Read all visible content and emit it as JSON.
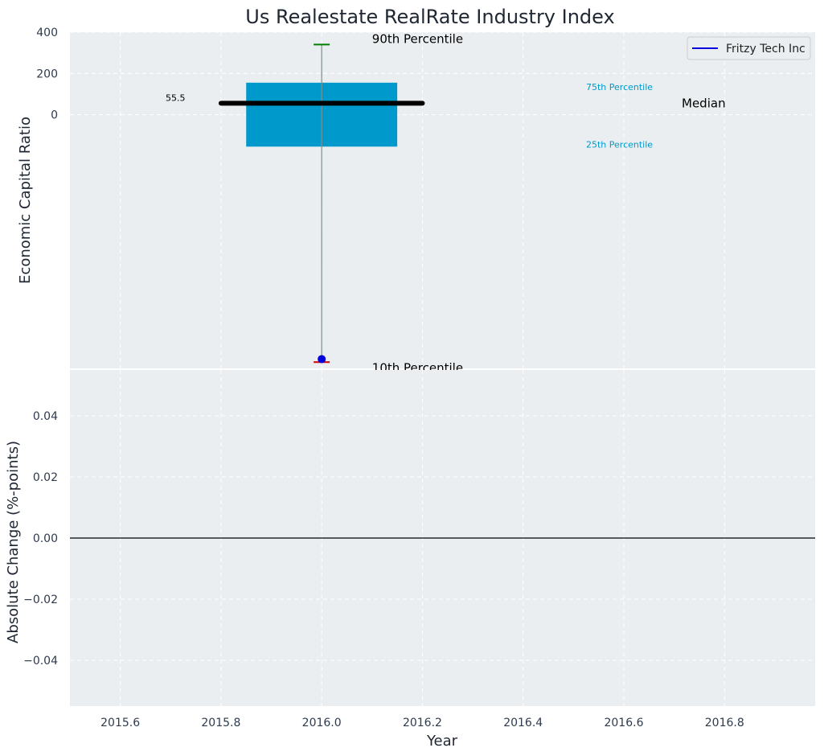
{
  "colors": {
    "panel_bg": "#eaeef0",
    "grid": "#ffffff",
    "box_fill": "#0099cc",
    "median_line": "#000000",
    "whisker": "#7f8c8d",
    "cap_high": "#008000",
    "cap_low": "#cc0000",
    "company_point": "#0000dd",
    "percentile_text": "#0099cc",
    "zero_line": "#000000"
  },
  "chart_data": {
    "type": "box",
    "title": "Us Realestate RealRate Industry Index",
    "xlabel": "Year",
    "xlim": [
      2015.5,
      2016.98
    ],
    "x_ticks": [
      2015.6,
      2015.8,
      2016.0,
      2016.2,
      2016.4,
      2016.6,
      2016.8
    ],
    "x_tick_labels": [
      "2015.6",
      "2015.8",
      "2016.0",
      "2016.2",
      "2016.4",
      "2016.6",
      "2016.8"
    ],
    "grid": true,
    "legend_position": "top-right",
    "panels": [
      {
        "id": "top",
        "ylabel": "Economic Capital Ratio",
        "ylim": [
          -1230,
          400
        ],
        "y_ticks": [
          0,
          200,
          400
        ],
        "y_tick_labels": [
          "0",
          "200",
          "400"
        ],
        "box": {
          "x": 2016.0,
          "half_width": 0.15,
          "p10": -1200,
          "p25": -155,
          "median": 55.5,
          "p75": 155,
          "p90": 340,
          "median_half_width": 0.2
        },
        "series": [
          {
            "name": "Fritzy Tech Inc",
            "x": [
              2016.0
            ],
            "y": [
              -1185
            ]
          }
        ],
        "annotations": {
          "median_value_label": "55.5",
          "p90_label": "90th Percentile",
          "p10_label": "10th Percentile",
          "p75_label": "75th Percentile",
          "p25_label": "25th Percentile",
          "median_label": "Median"
        }
      },
      {
        "id": "bottom",
        "ylabel": "Absolute Change (%-points)",
        "ylim": [
          -0.055,
          0.055
        ],
        "y_ticks": [
          -0.04,
          -0.02,
          0.0,
          0.02,
          0.04
        ],
        "y_tick_labels": [
          "−0.04",
          "−0.02",
          "0.00",
          "0.02",
          "0.04"
        ],
        "zero_line": 0.0
      }
    ]
  }
}
